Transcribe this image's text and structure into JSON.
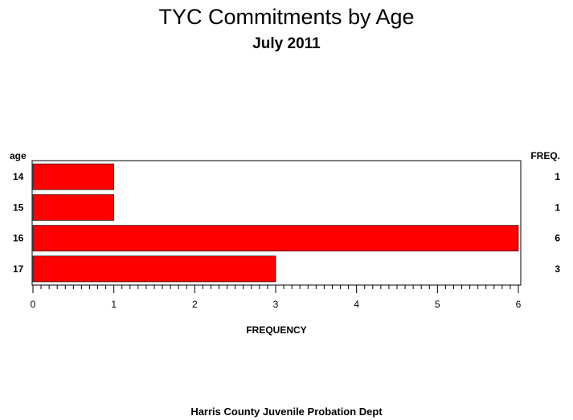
{
  "chart_data": {
    "type": "bar",
    "orientation": "horizontal",
    "title": "TYC Commitments by Age",
    "subtitle": "July 2011",
    "category_axis_label": "age",
    "stat_column_label": "FREQ.",
    "xlabel": "FREQUENCY",
    "categories": [
      "14",
      "15",
      "16",
      "17"
    ],
    "values": [
      1,
      1,
      6,
      3
    ],
    "xlim": [
      0,
      6
    ],
    "x_ticks": [
      0,
      1,
      2,
      3,
      4,
      5,
      6
    ],
    "minor_ticks_per_major": 10,
    "bar_color": "#ff0000",
    "footnote": "Harris County Juvenile Probation Dept"
  }
}
